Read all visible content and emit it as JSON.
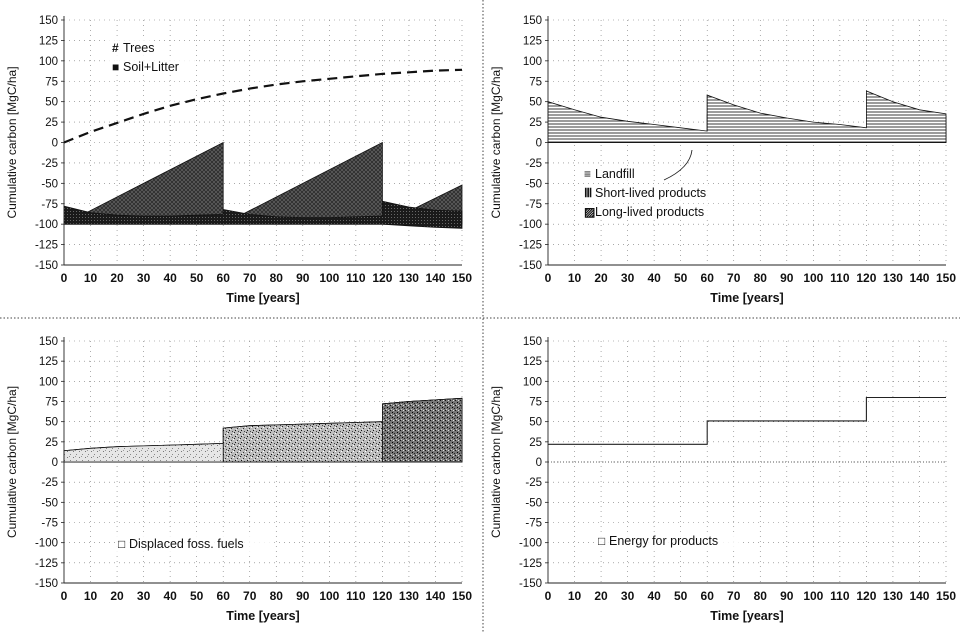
{
  "chart_data": [
    {
      "type": "area",
      "panel": "top-left",
      "xlabel": "Time [years]",
      "ylabel": "Cumulative carbon [MgC/ha]",
      "xlim": [
        0,
        150
      ],
      "ylim": [
        -150,
        150
      ],
      "xticks": [
        0,
        10,
        20,
        30,
        40,
        50,
        60,
        70,
        80,
        90,
        100,
        110,
        120,
        130,
        140,
        150
      ],
      "yticks": [
        150,
        125,
        100,
        75,
        50,
        25,
        0,
        -25,
        -50,
        -75,
        -100,
        -125,
        -150
      ],
      "grid": true,
      "legend_position": "top-left",
      "legend": [
        "Trees",
        "Soil+Litter"
      ],
      "series": [
        {
          "name": "Trees",
          "style": "solid-fill",
          "color": "#222222",
          "x": [
            0,
            60,
            60,
            120,
            120,
            150
          ],
          "y": [
            -100,
            0,
            -100,
            0,
            -100,
            -52
          ]
        },
        {
          "name": "Soil+Litter",
          "style": "band",
          "color": "#333333",
          "x": [
            0,
            10,
            20,
            30,
            40,
            50,
            60,
            60,
            70,
            80,
            90,
            100,
            110,
            120,
            120,
            130,
            140,
            150
          ],
          "upper": [
            -78,
            -86,
            -89,
            -90,
            -90,
            -89,
            -88,
            -82,
            -88,
            -91,
            -92,
            -92,
            -91,
            -90,
            -72,
            -79,
            -83,
            -84
          ],
          "lower": [
            -100,
            -100,
            -100,
            -100,
            -100,
            -100,
            -100,
            -100,
            -100,
            -100,
            -100,
            -100,
            -100,
            -100,
            -100,
            -102,
            -104,
            -105
          ]
        },
        {
          "name": "",
          "style": "dashed-line",
          "color": "#111111",
          "x": [
            0,
            10,
            20,
            30,
            40,
            50,
            60,
            70,
            80,
            90,
            100,
            110,
            120,
            130,
            140,
            150
          ],
          "y": [
            0,
            13,
            24,
            35,
            45,
            53,
            60,
            66,
            71,
            75,
            78,
            81,
            84,
            86,
            88,
            89
          ]
        }
      ]
    },
    {
      "type": "area",
      "panel": "top-right",
      "xlabel": "Time [years]",
      "ylabel": "Cumulative carbon [MgC/ha]",
      "xlim": [
        0,
        150
      ],
      "ylim": [
        -150,
        150
      ],
      "xticks": [
        0,
        10,
        20,
        30,
        40,
        50,
        60,
        70,
        80,
        90,
        100,
        110,
        120,
        130,
        140,
        150
      ],
      "yticks": [
        150,
        125,
        100,
        75,
        50,
        25,
        0,
        -25,
        -50,
        -75,
        -100,
        -125,
        -150
      ],
      "grid": true,
      "legend_position": "center-left",
      "legend": [
        "Landfill",
        "Short-lived products",
        "Long-lived products"
      ],
      "series": [
        {
          "name": "Long-lived products",
          "x": [
            0,
            10,
            20,
            30,
            40,
            50,
            60,
            60,
            70,
            80,
            90,
            100,
            110,
            120,
            120,
            130,
            140,
            150
          ],
          "y": [
            28,
            22,
            18,
            15,
            13,
            11,
            9,
            34,
            27,
            22,
            19,
            16,
            14,
            12,
            40,
            32,
            27,
            24
          ]
        },
        {
          "name": "Short-lived products",
          "x": [
            0,
            10,
            20,
            30,
            40,
            50,
            60,
            60,
            70,
            80,
            90,
            100,
            110,
            120,
            120,
            130,
            140,
            150
          ],
          "y": [
            50,
            38,
            27,
            22,
            18,
            15,
            12,
            58,
            44,
            33,
            27,
            22,
            19,
            16,
            63,
            48,
            37,
            32
          ]
        },
        {
          "name": "Landfill",
          "x": [
            0,
            10,
            20,
            30,
            40,
            50,
            60,
            60,
            70,
            80,
            90,
            100,
            110,
            120,
            120,
            130,
            140,
            150
          ],
          "y": [
            50,
            40,
            31,
            26,
            22,
            18,
            14,
            58,
            46,
            36,
            30,
            25,
            22,
            18,
            63,
            50,
            40,
            35
          ]
        }
      ]
    },
    {
      "type": "area",
      "panel": "bottom-left",
      "xlabel": "Time [years]",
      "ylabel": "Cumulative carbon [MgC/ha]",
      "xlim": [
        0,
        150
      ],
      "ylim": [
        -150,
        150
      ],
      "xticks": [
        0,
        10,
        20,
        30,
        40,
        50,
        60,
        70,
        80,
        90,
        100,
        110,
        120,
        130,
        140,
        150
      ],
      "yticks": [
        150,
        125,
        100,
        75,
        50,
        25,
        0,
        -25,
        -50,
        -75,
        -100,
        -125,
        -150
      ],
      "grid": true,
      "legend_position": "bottom-left",
      "legend": [
        "Displaced foss. fuels"
      ],
      "series": [
        {
          "name": "Displaced foss. fuels",
          "x": [
            0,
            10,
            20,
            30,
            40,
            50,
            60,
            60,
            70,
            80,
            90,
            100,
            110,
            120,
            120,
            130,
            140,
            150
          ],
          "y": [
            14,
            17,
            19,
            20,
            21,
            22,
            23,
            42,
            45,
            46,
            47,
            48,
            49,
            50,
            72,
            75,
            77,
            79
          ]
        }
      ]
    },
    {
      "type": "line",
      "panel": "bottom-right",
      "xlabel": "Time [years]",
      "ylabel": "Cumulative carbon [MgC/ha]",
      "xlim": [
        0,
        150
      ],
      "ylim": [
        -150,
        150
      ],
      "xticks": [
        0,
        10,
        20,
        30,
        40,
        50,
        60,
        70,
        80,
        90,
        100,
        110,
        120,
        130,
        140,
        150
      ],
      "yticks": [
        150,
        125,
        100,
        75,
        50,
        25,
        0,
        -25,
        -50,
        -75,
        -100,
        -125,
        -150
      ],
      "grid": true,
      "legend_position": "bottom-left",
      "legend": [
        "Energy for products"
      ],
      "series": [
        {
          "name": "Energy for products",
          "x": [
            0,
            60,
            60,
            120,
            120,
            150
          ],
          "y": [
            22,
            22,
            51,
            51,
            80,
            80
          ]
        }
      ]
    }
  ]
}
